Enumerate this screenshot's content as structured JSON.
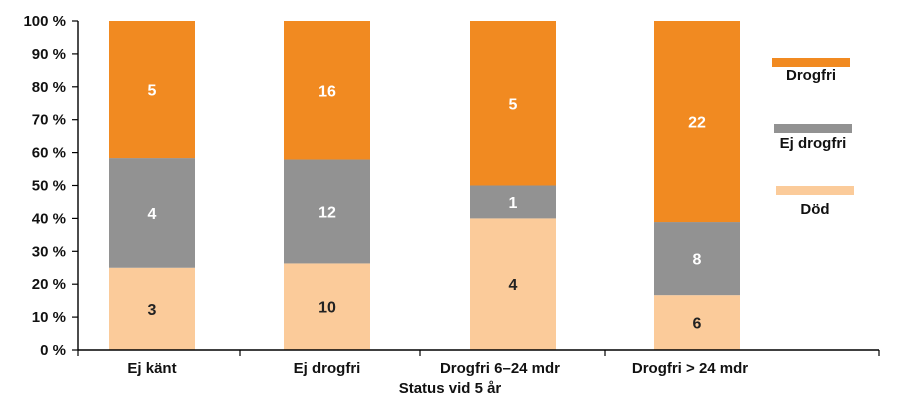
{
  "chart_data": {
    "type": "bar",
    "stacked": true,
    "normalized_percent": true,
    "categories": [
      "Ej känt",
      "Ej drogfri",
      "Drogfri 6–24 mdr",
      "Drogfri > 24 mdr"
    ],
    "series": [
      {
        "name": "Död",
        "color": "#fbcb9a",
        "values": [
          3,
          10,
          4,
          6
        ]
      },
      {
        "name": "Ej drogfri",
        "color": "#929292",
        "values": [
          4,
          12,
          1,
          8
        ]
      },
      {
        "name": "Drogfri",
        "color": "#f18a21",
        "values": [
          5,
          16,
          5,
          22
        ]
      }
    ],
    "title": "",
    "xlabel": "Status vid 5 år",
    "ylabel": "",
    "y_ticks": [
      "0 %",
      "10 %",
      "20 %",
      "30 %",
      "40 %",
      "50 %",
      "60 %",
      "70 %",
      "80 %",
      "90 %",
      "100 %"
    ],
    "ylim": [
      0,
      100
    ],
    "grid": false,
    "legend_position": "right",
    "legend_order": [
      "Drogfri",
      "Ej drogfri",
      "Död"
    ]
  }
}
